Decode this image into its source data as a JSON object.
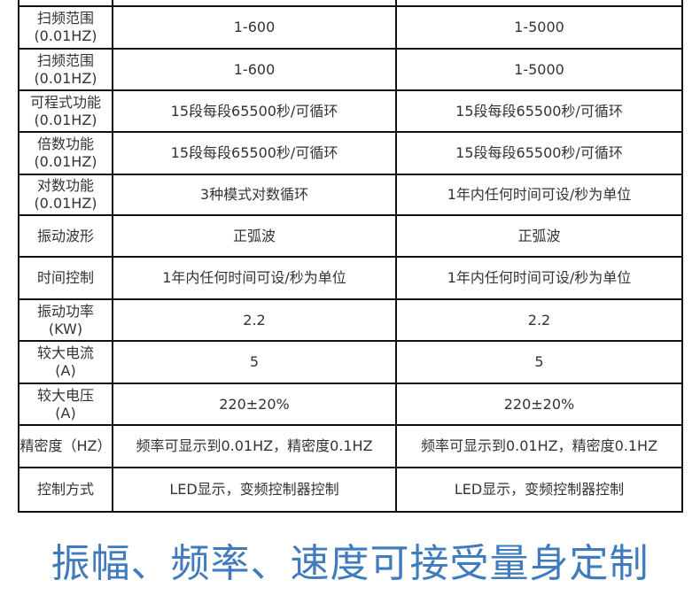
{
  "rows": [
    {
      "label": "扫频范围",
      "unit": "(0.01HZ)",
      "a": "1-600",
      "b": "1-5000"
    },
    {
      "label": "扫频范围",
      "unit": "(0.01HZ)",
      "a": "1-600",
      "b": "1-5000"
    },
    {
      "label": "可程式功能",
      "unit": "(0.01HZ)",
      "a": "15段每段65500秒/可循环",
      "b": "15段每段65500秒/可循环"
    },
    {
      "label": "倍数功能",
      "unit": "(0.01HZ)",
      "a": "15段每段65500秒/可循环",
      "b": "15段每段65500秒/可循环"
    },
    {
      "label": "对数功能",
      "unit": "(0.01HZ)",
      "a": "3种模式对数循环",
      "b": "1年内任何时间可设/秒为单位"
    },
    {
      "label": "振动波形",
      "unit": "",
      "a": "正弧波",
      "b": "正弧波"
    },
    {
      "label": "时间控制",
      "unit": "",
      "a": "1年内任何时间可设/秒为单位",
      "b": "1年内任何时间可设/秒为单位"
    },
    {
      "label": "振动功率",
      "unit": "(KW)",
      "a": "2.2",
      "b": "2.2"
    },
    {
      "label": "较大电流",
      "unit": "(A)",
      "a": "5",
      "b": "5"
    },
    {
      "label": "较大电压",
      "unit": "(A)",
      "a": "220±20%",
      "b": "220±20%"
    },
    {
      "label": "精密度（HZ）",
      "unit": "",
      "a": "频率可显示到0.01HZ，精密度0.1HZ",
      "b": "频率可显示到0.01HZ，精密度0.1HZ"
    },
    {
      "label": "控制方式",
      "unit": "",
      "a": "LED显示，变频控制器控制",
      "b": "LED显示，变频控制器控制"
    }
  ],
  "footer_title": "振幅、频率、速度可接受量身定制",
  "colors": {
    "title": "#3f7bbd",
    "border": "#111111"
  }
}
